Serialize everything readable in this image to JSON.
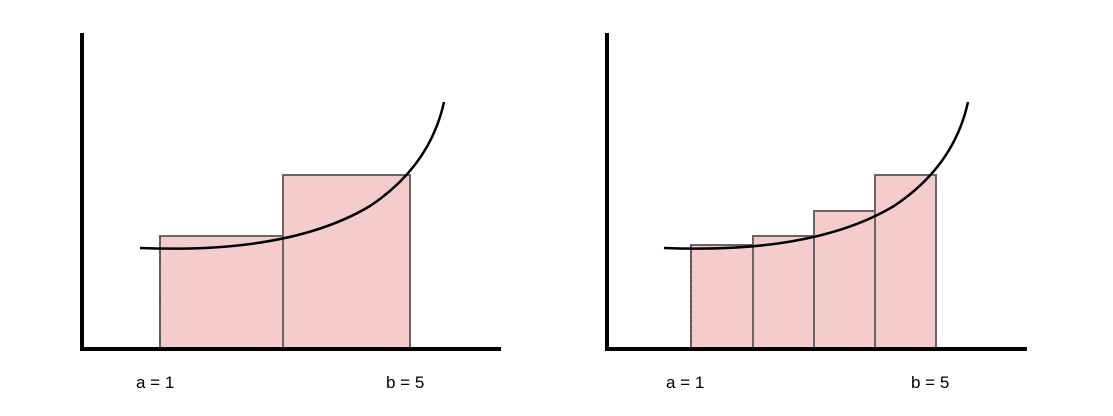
{
  "colors": {
    "bar_fill": "#f4cccc",
    "bar_stroke": "#666666",
    "curve": "#000000",
    "axis": "#000000"
  },
  "panels": [
    {
      "name": "left-panel",
      "rectangles": 2,
      "left_label": "a = 1",
      "right_label": "b = 5"
    },
    {
      "name": "right-panel",
      "rectangles": 4,
      "left_label": "a = 1",
      "right_label": "b = 5"
    }
  ]
}
